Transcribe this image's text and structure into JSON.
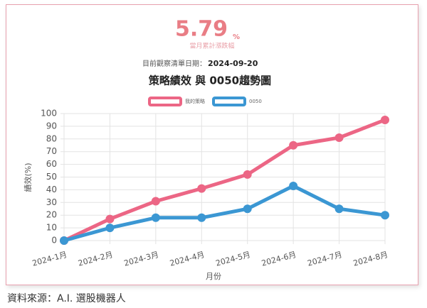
{
  "header": {
    "headline": "5.79",
    "unit": "%",
    "caption": "當月累計漲跌幅",
    "date_label": "目前觀察清單日期：",
    "date": "2024-09-20"
  },
  "chart_data": {
    "type": "line",
    "title": "策略績效 與 0050趨勢圖",
    "categories": [
      "2024-1月",
      "2024-2月",
      "2024-3月",
      "2024-4月",
      "2024-5月",
      "2024-6月",
      "2024-7月",
      "2024-8月"
    ],
    "series": [
      {
        "name": "我的策略",
        "color": "#ec6685",
        "values": [
          0,
          17,
          31,
          41,
          52,
          75,
          81,
          95
        ]
      },
      {
        "name": "0050",
        "color": "#3b97d3",
        "values": [
          0,
          10,
          18,
          18,
          25,
          43,
          25,
          20
        ]
      }
    ],
    "ylim": [
      0,
      100
    ],
    "yticks": [
      0,
      10,
      20,
      30,
      40,
      50,
      60,
      70,
      80,
      90,
      100
    ],
    "y_label": "績效(%)",
    "x_label": "月份",
    "grid": true
  },
  "footer": {
    "source": "資料來源：A.I. 選股機器人"
  }
}
